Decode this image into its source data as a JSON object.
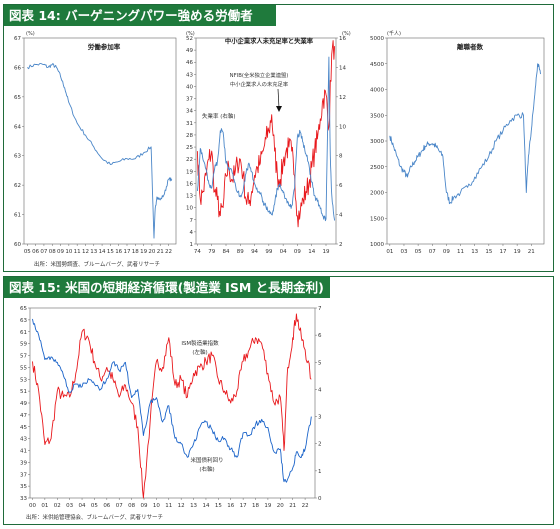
{
  "figure14": {
    "title": "図表 14: バーゲニングパワー強める労働者",
    "source": "出所：米国勢調査、ブルームバーグ、武者リサーチ",
    "charts": [
      {
        "title": "労働参加率",
        "unit": "(%)"
      },
      {
        "title": "中小企業求人未充足率と失業率",
        "unit": "(%)",
        "unit_right": "(%)",
        "annotation_nfib": "NFIB(全米独立企業連盟)",
        "annotation_nfib2": "中小企業求人の未充足率",
        "annotation_unemp": "失業率 (右軸)"
      },
      {
        "title": "離職者数",
        "unit": "(千人)"
      }
    ]
  },
  "figure15": {
    "title": "図表 15: 米国の短期経済循環(製造業 ISM と長期金利)",
    "source": "出所：米供給管理協会、ブルームバーグ、武者リサーチ",
    "label_ism": "ISM製造業指数",
    "label_ism2": "(左軸)",
    "label_yield": "米国債利回り",
    "label_yield2": "(右軸)"
  },
  "chart_data": [
    {
      "type": "line",
      "title": "労働参加率",
      "ylabel": "(%)",
      "ylim": [
        60,
        67
      ],
      "yticks": [
        60,
        61,
        62,
        63,
        64,
        65,
        66,
        67
      ],
      "xticks": [
        "05",
        "06",
        "07",
        "08",
        "09",
        "10",
        "11",
        "12",
        "13",
        "14",
        "15",
        "16",
        "17",
        "18",
        "19",
        "20",
        "21",
        "22"
      ],
      "series": [
        {
          "color": "#4a86c8",
          "x": [
            2005.0,
            2006.0,
            2007.0,
            2007.5,
            2008.0,
            2008.5,
            2009.0,
            2009.5,
            2010.0,
            2011.0,
            2012.0,
            2013.0,
            2014.0,
            2015.0,
            2016.0,
            2017.0,
            2018.0,
            2019.0,
            2019.9,
            2020.25,
            2020.4,
            2020.6,
            2021.0,
            2021.5,
            2022.0,
            2022.4
          ],
          "values": [
            66.0,
            66.1,
            66.1,
            66.0,
            66.1,
            66.0,
            65.7,
            65.3,
            64.8,
            64.1,
            63.7,
            63.3,
            62.9,
            62.7,
            62.8,
            62.9,
            62.9,
            63.1,
            63.3,
            60.2,
            61.2,
            61.6,
            61.5,
            61.7,
            62.2,
            62.2
          ]
        }
      ]
    },
    {
      "type": "line",
      "title": "中小企業求人未充足率と失業率",
      "ylabel": "(%)",
      "ylim": [
        1,
        52
      ],
      "yticks": [
        1,
        4,
        7,
        10,
        13,
        16,
        19,
        22,
        25,
        28,
        31,
        34,
        37,
        40,
        43,
        46,
        49,
        52
      ],
      "y2lim": [
        2,
        16
      ],
      "y2ticks": [
        2,
        4,
        6,
        8,
        10,
        12,
        14,
        16
      ],
      "xticks": [
        "74",
        "79",
        "84",
        "89",
        "94",
        "99",
        "04",
        "09",
        "14",
        "19"
      ],
      "series": [
        {
          "name": "NFIB(全米独立企業連盟) 中小企業求人の未充足率",
          "color": "#e8181c",
          "x": [
            1974,
            1975,
            1976,
            1977,
            1978,
            1979,
            1980,
            1981,
            1982,
            1983,
            1984,
            1985,
            1986,
            1987,
            1988,
            1989,
            1990,
            1991,
            1992,
            1993,
            1994,
            1995,
            1996,
            1997,
            1998,
            1999,
            2000,
            2001,
            2002,
            2003,
            2004,
            2005,
            2006,
            2007,
            2008,
            2009,
            2010,
            2011,
            2012,
            2013,
            2014,
            2015,
            2016,
            2017,
            2018,
            2019,
            2020,
            2021,
            2022
          ],
          "values": [
            24,
            12,
            14,
            18,
            22,
            24,
            14,
            12,
            8,
            10,
            18,
            20,
            17,
            18,
            21,
            22,
            18,
            12,
            11,
            14,
            18,
            20,
            21,
            24,
            27,
            29,
            33,
            24,
            18,
            17,
            21,
            24,
            25,
            24,
            18,
            8,
            9,
            12,
            14,
            16,
            20,
            24,
            27,
            32,
            37,
            38,
            30,
            48,
            50
          ]
        },
        {
          "name": "失業率 (右軸)",
          "color": "#4a86c8",
          "axis": "right",
          "x": [
            1974,
            1975,
            1976,
            1977,
            1978,
            1979,
            1980,
            1981,
            1982,
            1983,
            1984,
            1985,
            1986,
            1987,
            1988,
            1989,
            1990,
            1991,
            1992,
            1993,
            1994,
            1995,
            1996,
            1997,
            1998,
            1999,
            2000,
            2001,
            2002,
            2003,
            2004,
            2005,
            2006,
            2007,
            2008,
            2009,
            2010,
            2011,
            2012,
            2013,
            2014,
            2015,
            2016,
            2017,
            2018,
            2019,
            2020,
            2020.5,
            2021,
            2022
          ],
          "values": [
            5.6,
            8.5,
            7.7,
            7.1,
            6.1,
            5.8,
            7.1,
            7.6,
            9.7,
            9.6,
            7.5,
            7.2,
            7.0,
            6.2,
            5.5,
            5.3,
            5.6,
            6.8,
            7.5,
            6.9,
            6.1,
            5.6,
            5.4,
            4.9,
            4.5,
            4.2,
            4.0,
            4.7,
            5.8,
            6.0,
            5.5,
            5.1,
            4.6,
            4.6,
            5.8,
            9.3,
            9.6,
            8.9,
            8.1,
            7.4,
            6.2,
            5.3,
            4.9,
            4.4,
            3.9,
            3.7,
            14.7,
            8.0,
            5.4,
            3.6
          ]
        }
      ]
    },
    {
      "type": "line",
      "title": "離職者数",
      "ylabel": "(千人)",
      "ylim": [
        1000,
        5000
      ],
      "yticks": [
        1000,
        1500,
        2000,
        2500,
        3000,
        3500,
        4000,
        4500,
        5000
      ],
      "xticks": [
        "01",
        "03",
        "05",
        "07",
        "09",
        "11",
        "13",
        "15",
        "17",
        "19",
        "21"
      ],
      "series": [
        {
          "color": "#4a86c8",
          "x": [
            2001.0,
            2001.5,
            2002.0,
            2002.5,
            2003.0,
            2003.5,
            2004.0,
            2004.5,
            2005.0,
            2005.5,
            2006.0,
            2006.5,
            2007.0,
            2007.5,
            2008.0,
            2008.5,
            2009.0,
            2009.5,
            2010.0,
            2011.0,
            2012.0,
            2013.0,
            2014.0,
            2015.0,
            2016.0,
            2017.0,
            2018.0,
            2019.0,
            2019.9,
            2020.3,
            2020.6,
            2021.0,
            2021.5,
            2021.9,
            2022.3
          ],
          "values": [
            3100,
            2900,
            2700,
            2500,
            2400,
            2300,
            2500,
            2600,
            2700,
            2800,
            2900,
            2950,
            2950,
            2900,
            2800,
            2700,
            2000,
            1800,
            1900,
            2000,
            2100,
            2300,
            2500,
            2700,
            3000,
            3200,
            3400,
            3500,
            3500,
            2000,
            2700,
            3200,
            3900,
            4500,
            4300
          ]
        }
      ]
    },
    {
      "type": "line",
      "title": "",
      "ylim": [
        33,
        65
      ],
      "yticks": [
        33,
        35,
        37,
        39,
        41,
        43,
        45,
        47,
        49,
        51,
        53,
        55,
        57,
        59,
        61,
        63,
        65
      ],
      "y2lim": [
        0,
        7
      ],
      "y2ticks": [
        0,
        1,
        2,
        3,
        4,
        5,
        6,
        7
      ],
      "xticks": [
        "00",
        "01",
        "02",
        "03",
        "04",
        "05",
        "06",
        "07",
        "08",
        "09",
        "10",
        "11",
        "12",
        "13",
        "14",
        "15",
        "16",
        "17",
        "18",
        "19",
        "20",
        "21",
        "22"
      ],
      "series": [
        {
          "name": "ISM製造業指数 (左軸)",
          "color": "#e8181c",
          "x": [
            2000.0,
            2000.5,
            2001.0,
            2001.5,
            2002.0,
            2002.5,
            2003.0,
            2003.5,
            2004.0,
            2004.5,
            2005.0,
            2005.5,
            2006.0,
            2006.5,
            2007.0,
            2007.5,
            2008.0,
            2008.5,
            2008.95,
            2009.5,
            2010.0,
            2010.5,
            2011.0,
            2011.5,
            2012.0,
            2012.5,
            2013.0,
            2013.5,
            2014.0,
            2014.5,
            2015.0,
            2015.5,
            2016.0,
            2016.5,
            2017.0,
            2017.5,
            2018.0,
            2018.5,
            2019.0,
            2019.5,
            2020.0,
            2020.3,
            2020.6,
            2021.0,
            2021.3,
            2021.7,
            2022.0,
            2022.5
          ],
          "values": [
            56,
            51,
            42,
            43,
            51,
            50,
            50,
            54,
            61,
            60,
            56,
            53,
            55,
            53,
            50,
            52,
            49,
            45,
            33,
            46,
            56,
            55,
            60,
            52,
            53,
            50,
            54,
            55,
            56,
            57,
            53,
            51,
            49,
            51,
            56,
            58,
            60,
            59,
            54,
            49,
            50,
            41,
            55,
            60,
            64,
            60,
            58,
            53
          ]
        },
        {
          "name": "米国債利回り (右軸)",
          "color": "#1a63c9",
          "axis": "right",
          "x": [
            2000.0,
            2000.5,
            2001.0,
            2001.5,
            2002.0,
            2002.5,
            2003.0,
            2003.5,
            2004.0,
            2004.5,
            2005.0,
            2005.5,
            2006.0,
            2006.5,
            2007.0,
            2007.5,
            2008.0,
            2008.5,
            2008.95,
            2009.5,
            2010.0,
            2010.5,
            2011.0,
            2011.5,
            2012.0,
            2012.5,
            2013.0,
            2013.5,
            2014.0,
            2014.5,
            2015.0,
            2015.5,
            2016.0,
            2016.5,
            2017.0,
            2017.5,
            2018.0,
            2018.5,
            2019.0,
            2019.5,
            2020.0,
            2020.3,
            2020.6,
            2021.0,
            2021.3,
            2021.7,
            2022.0,
            2022.5
          ],
          "values": [
            6.6,
            6.0,
            5.1,
            5.2,
            5.0,
            4.5,
            3.9,
            4.2,
            4.1,
            4.4,
            4.2,
            4.0,
            4.4,
            5.0,
            4.7,
            5.0,
            3.7,
            4.0,
            2.3,
            3.5,
            3.7,
            2.8,
            3.4,
            2.2,
            2.0,
            1.5,
            2.0,
            2.6,
            2.8,
            2.5,
            2.1,
            2.2,
            1.8,
            1.5,
            2.4,
            2.3,
            2.7,
            2.9,
            2.6,
            1.7,
            1.8,
            0.6,
            0.7,
            1.1,
            1.7,
            1.5,
            1.8,
            3.0
          ]
        }
      ]
    }
  ]
}
